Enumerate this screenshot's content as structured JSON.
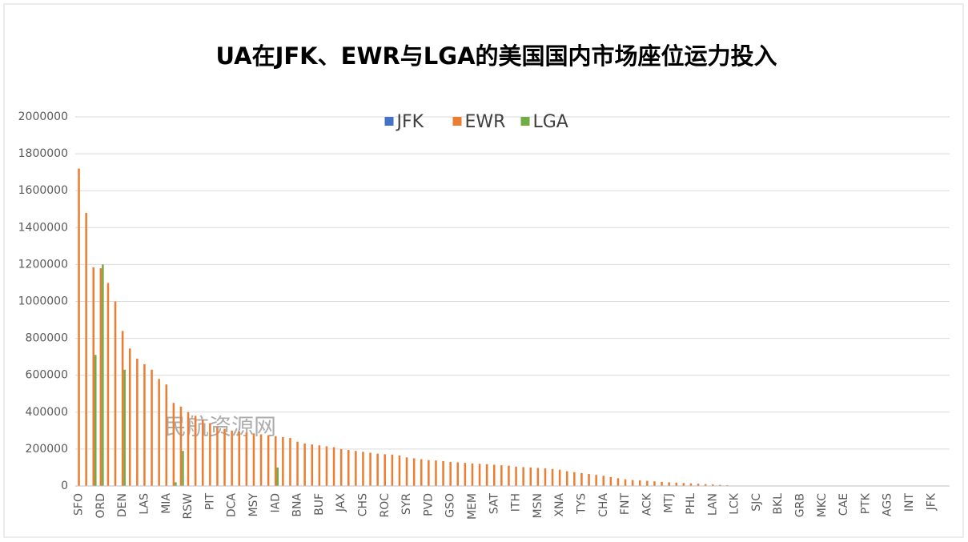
{
  "chart_data": {
    "type": "bar",
    "title": "UA在JFK、EWR与LGA的美国国内市场座位运力投入",
    "watermark": "民航资源网",
    "categories": [
      "SFO",
      null,
      null,
      "ORD",
      null,
      null,
      "DEN",
      null,
      null,
      "LAS",
      null,
      null,
      "MIA",
      null,
      null,
      "RSW",
      null,
      null,
      "PIT",
      null,
      null,
      "DCA",
      null,
      null,
      "MSY",
      null,
      null,
      "IAD",
      null,
      null,
      "BNA",
      null,
      null,
      "BUF",
      null,
      null,
      "JAX",
      null,
      null,
      "CHS",
      null,
      null,
      "ROC",
      null,
      null,
      "SYR",
      null,
      null,
      "PVD",
      null,
      null,
      "GSO",
      null,
      null,
      "MEM",
      null,
      null,
      "SAT",
      null,
      null,
      "ITH",
      null,
      null,
      "MSN",
      null,
      null,
      "XNA",
      null,
      null,
      "TYS",
      null,
      null,
      "CHA",
      null,
      null,
      "FNT",
      null,
      null,
      "ACK",
      null,
      null,
      "MTJ",
      null,
      null,
      "PHL",
      null,
      null,
      "LAN",
      null,
      null,
      "LCK",
      null,
      null,
      "SJC",
      null,
      null,
      "BKL",
      null,
      null,
      "GRB",
      null,
      null,
      "MKC",
      null,
      null,
      "CAE",
      null,
      null,
      "PTK",
      null,
      null,
      "AGS",
      null,
      null,
      "INT",
      null,
      null,
      "JFK",
      null,
      null
    ],
    "series": [
      {
        "name": "JFK",
        "color": "#4472c4",
        "values": [
          0,
          0,
          0,
          0,
          0,
          0,
          0,
          0,
          0,
          0,
          0,
          0,
          0,
          0,
          0,
          0,
          0,
          0,
          0,
          0,
          0,
          0,
          0,
          0,
          0,
          0,
          0,
          0,
          0,
          0,
          0,
          0,
          0,
          0,
          0,
          0,
          0,
          0,
          0,
          0,
          0,
          0,
          0,
          0,
          0,
          0,
          0,
          0,
          0,
          0,
          0,
          0,
          0,
          0,
          0,
          0,
          0,
          0,
          0,
          0,
          0,
          0,
          0,
          0,
          0,
          0,
          0,
          0,
          0,
          0,
          0,
          0,
          0,
          0,
          0,
          0,
          0,
          0,
          0,
          0,
          0,
          0,
          0,
          0,
          0,
          0,
          0,
          0,
          0,
          0,
          0,
          0,
          0,
          0,
          0,
          0,
          0,
          0,
          0,
          0,
          0,
          0,
          0,
          0,
          0,
          0,
          0,
          0,
          0,
          0,
          0,
          0,
          0,
          0,
          0,
          0,
          0,
          0,
          0,
          0
        ]
      },
      {
        "name": "EWR",
        "color": "#ed7d31",
        "values": [
          1720000,
          1480000,
          1185000,
          1180000,
          1100000,
          1000000,
          840000,
          745000,
          690000,
          660000,
          630000,
          580000,
          550000,
          450000,
          430000,
          400000,
          380000,
          360000,
          340000,
          320000,
          310000,
          300000,
          295000,
          290000,
          285000,
          280000,
          275000,
          270000,
          265000,
          260000,
          240000,
          230000,
          225000,
          220000,
          215000,
          210000,
          200000,
          195000,
          190000,
          185000,
          180000,
          175000,
          172000,
          170000,
          165000,
          155000,
          150000,
          145000,
          140000,
          138000,
          135000,
          130000,
          128000,
          125000,
          122000,
          120000,
          118000,
          115000,
          112000,
          110000,
          105000,
          102000,
          100000,
          98000,
          95000,
          92000,
          88000,
          80000,
          75000,
          70000,
          65000,
          60000,
          55000,
          48000,
          42000,
          36000,
          32000,
          30000,
          28000,
          25000,
          22000,
          20000,
          18000,
          16000,
          14000,
          12000,
          10000,
          8000,
          6000,
          4000,
          0,
          0,
          0,
          0,
          0,
          0,
          0,
          0,
          0,
          0,
          0,
          0,
          0,
          0,
          0,
          0,
          0,
          0,
          0,
          0,
          0,
          0,
          0,
          0,
          0,
          0,
          0,
          0,
          0,
          0
        ]
      },
      {
        "name": "LGA",
        "color": "#70ad47",
        "values": [
          0,
          0,
          710000,
          1200000,
          0,
          0,
          630000,
          0,
          0,
          0,
          0,
          0,
          0,
          20000,
          190000,
          0,
          0,
          0,
          0,
          0,
          0,
          0,
          0,
          0,
          0,
          0,
          0,
          100000,
          0,
          0,
          0,
          0,
          0,
          0,
          0,
          0,
          0,
          0,
          0,
          0,
          0,
          0,
          0,
          0,
          0,
          0,
          0,
          0,
          0,
          0,
          0,
          0,
          0,
          0,
          0,
          0,
          0,
          0,
          0,
          0,
          0,
          0,
          0,
          0,
          0,
          0,
          0,
          0,
          0,
          0,
          0,
          0,
          0,
          0,
          0,
          0,
          0,
          0,
          0,
          0,
          0,
          0,
          0,
          0,
          0,
          0,
          0,
          0,
          0,
          0,
          0,
          0,
          0,
          0,
          0,
          0,
          0,
          0,
          0,
          0,
          0,
          0,
          0,
          0,
          0,
          0,
          0,
          0,
          0,
          0,
          0,
          0,
          0,
          0,
          0,
          0,
          0,
          0,
          0,
          0
        ]
      }
    ],
    "ylim": [
      0,
      2000000
    ],
    "yticks": [
      0,
      200000,
      400000,
      600000,
      800000,
      1000000,
      1200000,
      1400000,
      1600000,
      1800000,
      2000000
    ],
    "grid": true,
    "legend": "top"
  }
}
